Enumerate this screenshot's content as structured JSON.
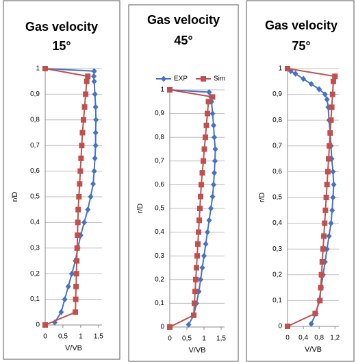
{
  "chart_data": [
    {
      "type": "line",
      "title": "Gas velocity",
      "subtitle": "15°",
      "ylabel": "r/D",
      "xlabel": "V/VB",
      "grid": true,
      "xlim": [
        0,
        1.6
      ],
      "xticks": [
        0,
        {
          "value": 0.5,
          "label": "0,5"
        },
        1,
        {
          "value": 1.5,
          "label": "1,5"
        }
      ],
      "ylim": [
        0,
        1
      ],
      "yticks": [
        0,
        {
          "value": 0.1,
          "label": "0,1"
        },
        {
          "value": 0.2,
          "label": "0,2"
        },
        {
          "value": 0.3,
          "label": "0,3"
        },
        {
          "value": 0.4,
          "label": "0,4"
        },
        {
          "value": 0.5,
          "label": "0,5"
        },
        {
          "value": 0.6,
          "label": "0,6"
        },
        {
          "value": 0.7,
          "label": "0,7"
        },
        {
          "value": 0.8,
          "label": "0,8"
        },
        {
          "value": 0.9,
          "label": "0,9"
        },
        1
      ],
      "series": [
        {
          "color": "#4472c4",
          "marker": "diamond",
          "x": [
            0.27,
            0.45,
            0.55,
            0.65,
            0.75,
            0.85,
            0.92,
            1.0,
            1.1,
            1.2,
            1.28,
            1.35,
            1.38,
            1.4,
            1.42,
            1.42,
            1.43,
            1.42,
            1.4,
            1.38,
            1.37,
            1.38,
            0
          ],
          "values": [
            0.01,
            0.05,
            0.1,
            0.15,
            0.2,
            0.25,
            0.3,
            0.35,
            0.4,
            0.45,
            0.5,
            0.55,
            0.6,
            0.65,
            0.7,
            0.75,
            0.8,
            0.85,
            0.9,
            0.95,
            0.97,
            0.99,
            1.0
          ]
        },
        {
          "color": "#c0504d",
          "marker": "square",
          "x": [
            0,
            0.85,
            0.86,
            0.87,
            0.88,
            0.89,
            0.9,
            0.91,
            0.92,
            0.93,
            0.95,
            0.97,
            0.99,
            1.01,
            1.03,
            1.05,
            1.08,
            1.11,
            1.14,
            1.17,
            1.2,
            0
          ],
          "values": [
            0,
            0.05,
            0.1,
            0.15,
            0.2,
            0.25,
            0.3,
            0.35,
            0.4,
            0.45,
            0.5,
            0.55,
            0.6,
            0.65,
            0.7,
            0.75,
            0.8,
            0.85,
            0.9,
            0.95,
            0.97,
            1.0
          ]
        }
      ]
    },
    {
      "type": "line",
      "title": "Gas velocity",
      "subtitle": "45°",
      "ylabel": "r/D",
      "xlabel": "V/VB",
      "grid": true,
      "legend": "top",
      "xlim": [
        0,
        1.6
      ],
      "xticks": [
        0,
        {
          "value": 0.5,
          "label": "0,5"
        },
        1,
        {
          "value": 1.5,
          "label": "1,5"
        }
      ],
      "ylim": [
        0,
        1
      ],
      "yticks": [
        0,
        {
          "value": 0.1,
          "label": "0,1"
        },
        {
          "value": 0.2,
          "label": "0,2"
        },
        {
          "value": 0.3,
          "label": "0,3"
        },
        {
          "value": 0.4,
          "label": "0,4"
        },
        {
          "value": 0.5,
          "label": "0,5"
        },
        {
          "value": 0.6,
          "label": "0,6"
        },
        {
          "value": 0.7,
          "label": "0,7"
        },
        {
          "value": 0.8,
          "label": "0,8"
        },
        {
          "value": 0.9,
          "label": "0,9"
        },
        1
      ],
      "series": [
        {
          "name": "EXP",
          "color": "#4472c4",
          "marker": "diamond",
          "x": [
            0.55,
            0.7,
            0.78,
            0.85,
            0.9,
            0.95,
            1.0,
            1.05,
            1.1,
            1.15,
            1.2,
            1.25,
            1.28,
            1.3,
            1.32,
            1.33,
            1.3,
            1.28,
            1.25,
            1.22,
            1.2,
            1.15,
            0
          ],
          "values": [
            0.01,
            0.05,
            0.1,
            0.15,
            0.2,
            0.25,
            0.3,
            0.35,
            0.4,
            0.45,
            0.5,
            0.55,
            0.6,
            0.65,
            0.7,
            0.75,
            0.8,
            0.85,
            0.9,
            0.95,
            0.97,
            0.99,
            1.0
          ]
        },
        {
          "name": "Sim",
          "color": "#c0504d",
          "marker": "square",
          "x": [
            0,
            0.7,
            0.72,
            0.74,
            0.76,
            0.78,
            0.8,
            0.82,
            0.84,
            0.86,
            0.88,
            0.9,
            0.92,
            0.95,
            0.98,
            1.01,
            1.04,
            1.07,
            1.1,
            1.13,
            1.25,
            0
          ],
          "values": [
            0,
            0.05,
            0.1,
            0.15,
            0.2,
            0.25,
            0.3,
            0.35,
            0.4,
            0.45,
            0.5,
            0.55,
            0.6,
            0.65,
            0.7,
            0.75,
            0.8,
            0.85,
            0.9,
            0.95,
            0.97,
            1.0
          ]
        }
      ]
    },
    {
      "type": "line",
      "title": "Gas velocity",
      "subtitle": "75°",
      "ylabel": "r/D",
      "xlabel": "V/VB",
      "grid": true,
      "xlim": [
        0,
        1.3
      ],
      "xticks": [
        0,
        {
          "value": 0.4,
          "label": "0,4"
        },
        {
          "value": 0.8,
          "label": "0,8"
        },
        {
          "value": 1.2,
          "label": "1,2"
        }
      ],
      "ylim": [
        0,
        1
      ],
      "yticks": [
        0,
        {
          "value": 0.1,
          "label": "0,1"
        },
        {
          "value": 0.2,
          "label": "0,2"
        },
        {
          "value": 0.3,
          "label": "0,3"
        },
        {
          "value": 0.4,
          "label": "0,4"
        },
        {
          "value": 0.5,
          "label": "0,5"
        },
        {
          "value": 0.6,
          "label": "0,6"
        },
        {
          "value": 0.7,
          "label": "0,7"
        },
        {
          "value": 0.8,
          "label": "0,8"
        },
        {
          "value": 0.9,
          "label": "0,9"
        },
        1
      ],
      "series": [
        {
          "color": "#4472c4",
          "marker": "diamond",
          "x": [
            0.6,
            0.72,
            0.8,
            0.85,
            0.9,
            0.95,
            1.0,
            1.05,
            1.1,
            1.13,
            1.15,
            1.17,
            1.15,
            1.12,
            1.1,
            1.08,
            1.05,
            1.03,
            1.0,
            0.95,
            0.8,
            0.6,
            0.4,
            0.2,
            0.08,
            0
          ],
          "values": [
            0.01,
            0.05,
            0.1,
            0.15,
            0.2,
            0.25,
            0.3,
            0.35,
            0.4,
            0.45,
            0.5,
            0.55,
            0.6,
            0.65,
            0.7,
            0.75,
            0.8,
            0.85,
            0.88,
            0.9,
            0.92,
            0.94,
            0.96,
            0.98,
            0.99,
            1.0
          ]
        },
        {
          "color": "#c0504d",
          "marker": "square",
          "x": [
            0,
            0.7,
            0.82,
            0.84,
            0.86,
            0.88,
            0.9,
            0.92,
            0.94,
            0.96,
            0.98,
            1.0,
            1.02,
            1.04,
            1.06,
            1.08,
            1.1,
            1.12,
            1.14,
            1.16,
            1.2,
            0
          ],
          "values": [
            0,
            0.05,
            0.1,
            0.15,
            0.2,
            0.25,
            0.3,
            0.35,
            0.4,
            0.45,
            0.5,
            0.55,
            0.6,
            0.65,
            0.7,
            0.75,
            0.8,
            0.85,
            0.9,
            0.95,
            0.97,
            1.0
          ]
        }
      ]
    }
  ]
}
